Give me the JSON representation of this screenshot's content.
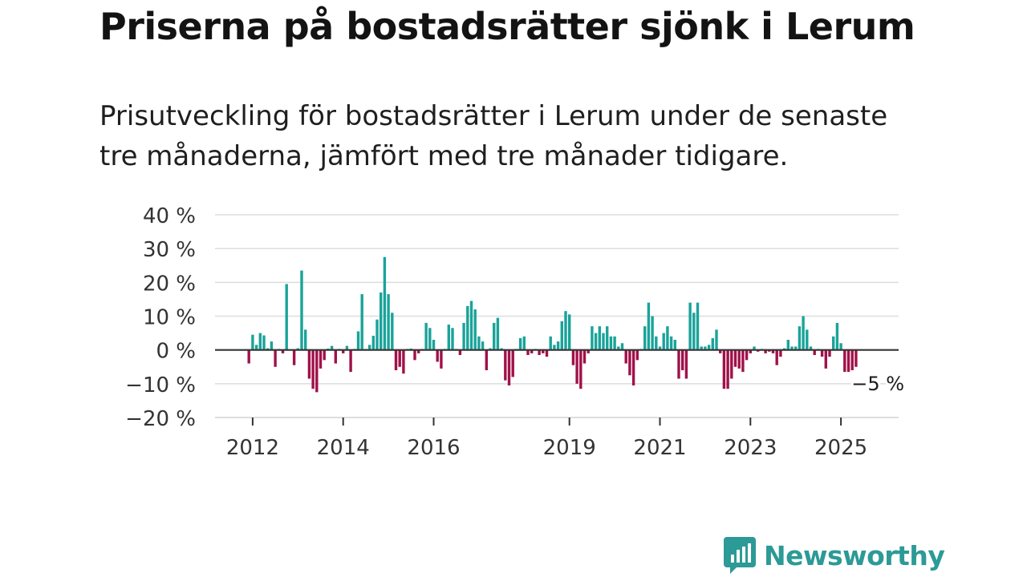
{
  "title": "Priserna på bostadsrätter sjönk i Lerum",
  "subtitle": "Prisutveckling för bostadsrätter i Lerum under de senaste tre månaderna, jämfört med tre månader tidigare.",
  "logo": {
    "text": "Newsworthy",
    "icon": "chart-bubble-icon"
  },
  "colors": {
    "positive": "#1aa39a",
    "negative": "#a0114a",
    "zero_line": "#333333",
    "grid": "#dddddd"
  },
  "chart_data": {
    "type": "bar",
    "title": "Priserna på bostadsrätter sjönk i Lerum",
    "ylabel": "",
    "xlabel": "",
    "ylim": [
      -20,
      40
    ],
    "yticks": [
      40,
      30,
      20,
      10,
      0,
      -10,
      -20
    ],
    "ytick_labels": [
      "40 %",
      "30 %",
      "20 %",
      "10 %",
      "0 %",
      "−10 %",
      "−20 %"
    ],
    "start": "2011-12",
    "step": "month",
    "xticks": [
      {
        "label": "2012",
        "index": 1
      },
      {
        "label": "2014",
        "index": 25
      },
      {
        "label": "2016",
        "index": 49
      },
      {
        "label": "2019",
        "index": 85
      },
      {
        "label": "2021",
        "index": 109
      },
      {
        "label": "2023",
        "index": 133
      },
      {
        "label": "2025",
        "index": 157
      }
    ],
    "last_value_label": "−5 %",
    "values": [
      -4,
      4.5,
      1.5,
      5,
      4.3,
      0.5,
      2.5,
      -5,
      0.3,
      -1,
      19.5,
      0.2,
      -4.5,
      0.5,
      23.5,
      6,
      -8.5,
      -11.5,
      -12.5,
      -5.5,
      -3,
      0.4,
      1.2,
      -4,
      0.3,
      -1,
      1.2,
      -6.5,
      0.3,
      5.5,
      16.5,
      0.3,
      1.5,
      4.2,
      9,
      17,
      27.5,
      16.5,
      11,
      -6,
      -5,
      -7,
      0.3,
      0.4,
      -3,
      -1,
      0.3,
      8,
      6.5,
      3,
      -3.5,
      -5.5,
      0.3,
      7.5,
      6.5,
      0.3,
      -1.5,
      8,
      13,
      14.5,
      12,
      4,
      2.5,
      -6,
      0.5,
      8,
      9.5,
      0.5,
      -9,
      -10.5,
      -8,
      0.3,
      3.5,
      4,
      -1.5,
      -1,
      0.3,
      -1.5,
      -1,
      -2,
      4,
      1.5,
      2.5,
      8.5,
      11.5,
      10.5,
      -4.5,
      -10,
      -11.5,
      -4,
      -1,
      7,
      5,
      7,
      5,
      7,
      4,
      4,
      1,
      2,
      -4,
      -7.5,
      -10.5,
      -3,
      0.3,
      7,
      14,
      10,
      4,
      1,
      5,
      7,
      4,
      3,
      -8.5,
      -6,
      -8.5,
      14,
      11,
      14,
      1,
      1,
      1.5,
      3.5,
      6,
      -1,
      -11.5,
      -11.5,
      -8.5,
      -5,
      -5.5,
      -6.5,
      -3,
      -1,
      1,
      -0.5,
      0.3,
      -1,
      -0.5,
      -1,
      -4.5,
      -2,
      0.5,
      3,
      1,
      1,
      7,
      10,
      6,
      1,
      -1.5,
      0.3,
      -2,
      -5.5,
      -2,
      4,
      8,
      2,
      -6.5,
      -6.5,
      -6,
      -5
    ]
  }
}
